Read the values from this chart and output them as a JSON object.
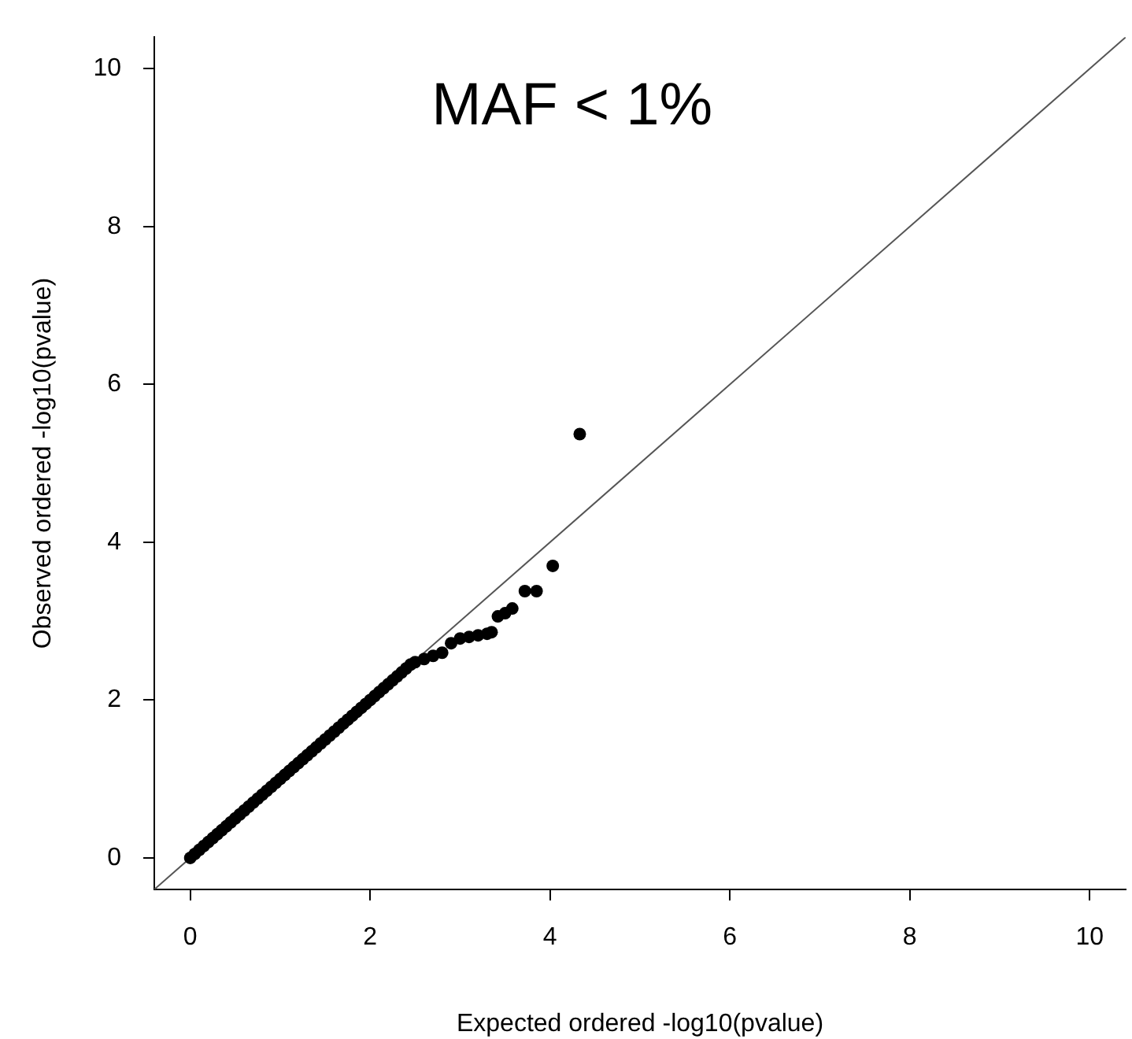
{
  "chart_data": {
    "type": "scatter",
    "title": "MAF < 1%",
    "xlabel": "Expected ordered -log10(pvalue)",
    "ylabel": "Observed ordered -log10(pvalue)",
    "xlim": [
      -0.4,
      10.4
    ],
    "ylim": [
      -0.4,
      10.4
    ],
    "xticks": [
      0,
      2,
      4,
      6,
      8,
      10
    ],
    "yticks": [
      0,
      2,
      4,
      6,
      8,
      10
    ],
    "grid": false,
    "legend": false,
    "marker": "circle",
    "series": [
      {
        "color": "#000000",
        "x": [
          0,
          0.05,
          0.1,
          0.15,
          0.2,
          0.25,
          0.3,
          0.35,
          0.4,
          0.45,
          0.5,
          0.55,
          0.6,
          0.65,
          0.7,
          0.75,
          0.8,
          0.85,
          0.9,
          0.95,
          1,
          1.05,
          1.1,
          1.15,
          1.2,
          1.25,
          1.3,
          1.35,
          1.4,
          1.45,
          1.5,
          1.55,
          1.6,
          1.65,
          1.7,
          1.75,
          1.8,
          1.85,
          1.9,
          1.95,
          2,
          2.05,
          2.1,
          2.15,
          2.2,
          2.25,
          2.3,
          2.35,
          2.4,
          2.45,
          2.5,
          2.6,
          2.7,
          2.8,
          2.9,
          3,
          3.1,
          3.2,
          3.3,
          3.35,
          3.42,
          3.5,
          3.58,
          3.72,
          3.85,
          4.03,
          4.33
        ],
        "values": [
          0,
          0.05,
          0.1,
          0.15,
          0.2,
          0.25,
          0.3,
          0.35,
          0.4,
          0.45,
          0.5,
          0.55,
          0.6,
          0.65,
          0.7,
          0.75,
          0.8,
          0.85,
          0.9,
          0.95,
          1,
          1.05,
          1.1,
          1.15,
          1.2,
          1.25,
          1.3,
          1.35,
          1.4,
          1.45,
          1.5,
          1.55,
          1.6,
          1.65,
          1.7,
          1.75,
          1.8,
          1.85,
          1.9,
          1.95,
          2,
          2.05,
          2.1,
          2.15,
          2.2,
          2.25,
          2.3,
          2.35,
          2.4,
          2.45,
          2.48,
          2.52,
          2.56,
          2.6,
          2.72,
          2.78,
          2.8,
          2.82,
          2.84,
          2.86,
          3.06,
          3.1,
          3.16,
          3.38,
          3.38,
          3.7,
          5.37
        ]
      },
      {
        "type": "line",
        "color": "#555555",
        "marker": "none",
        "x": [
          -0.4,
          10.4
        ],
        "values": [
          -0.4,
          10.4
        ]
      }
    ]
  }
}
